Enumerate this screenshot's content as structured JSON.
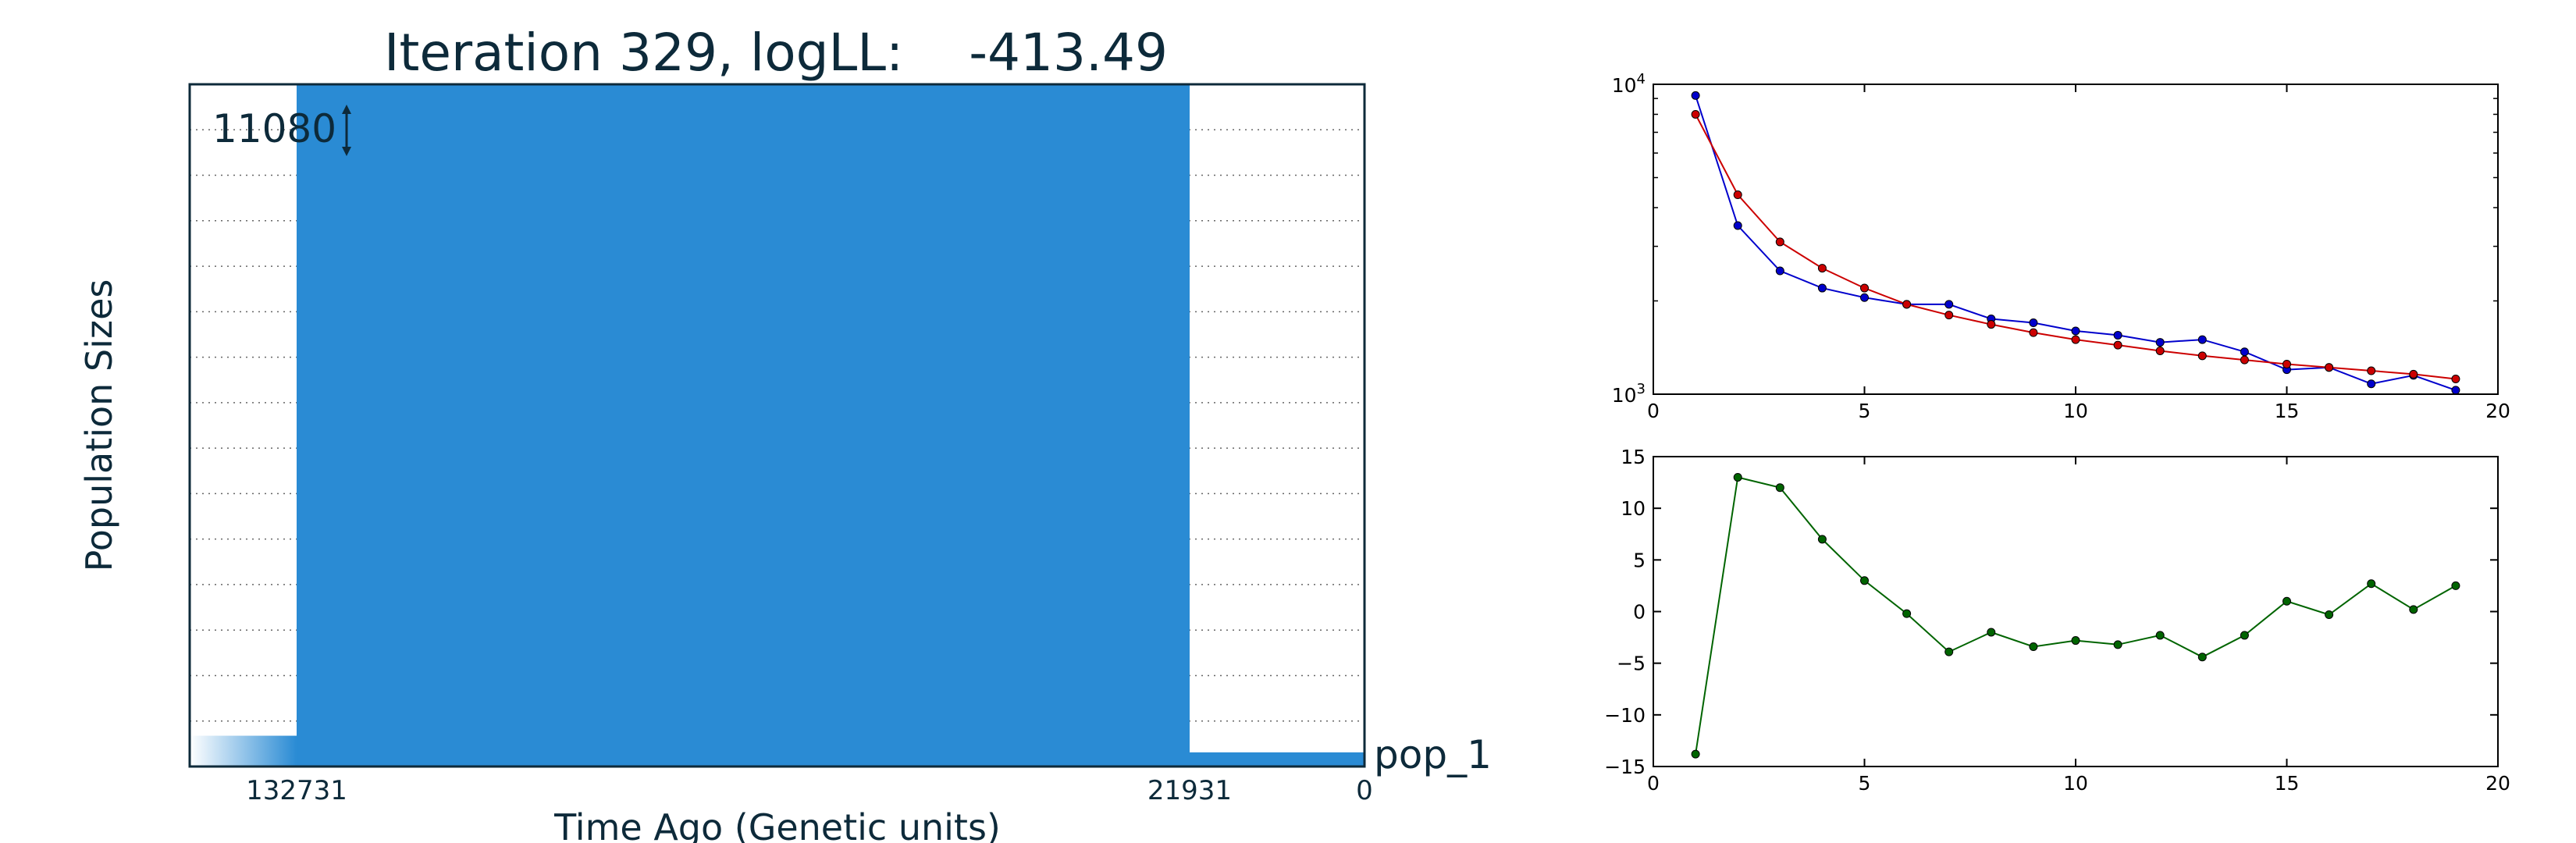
{
  "chart_data": [
    {
      "type": "area",
      "title": "Iteration 329, logLL:    -413.49",
      "xlabel": "Time Ago (Genetic units)",
      "ylabel": "Population Sizes",
      "size_scale_label": "11080",
      "population_label": "pop_1",
      "x_tick_labels": [
        "132731",
        "21931",
        "0"
      ],
      "epochs": [
        {
          "start": 132731,
          "end": null,
          "size": 500,
          "style": "ancestral-gradient"
        },
        {
          "start": 21931,
          "end": 132731,
          "size": 11080,
          "style": "solid"
        },
        {
          "start": 0,
          "end": 21931,
          "size": 230,
          "style": "solid"
        }
      ],
      "ylim": [
        0,
        11080
      ],
      "grid": "dotted horizontal",
      "colors": {
        "fill": "#2a8bd4",
        "text": "#0d2a3a",
        "frame": "#0d2a3a"
      }
    },
    {
      "type": "line",
      "xlim": [
        0,
        20
      ],
      "ylim": [
        1000,
        10000
      ],
      "yscale": "log",
      "x_ticks": [
        0,
        5,
        10,
        15,
        20
      ],
      "y_ticks": [
        {
          "value": 1000,
          "base": "10",
          "exp": "3"
        },
        {
          "value": 10000,
          "base": "10",
          "exp": "4"
        }
      ],
      "x": [
        1,
        2,
        3,
        4,
        5,
        6,
        7,
        8,
        9,
        10,
        11,
        12,
        13,
        14,
        15,
        16,
        17,
        18,
        19
      ],
      "series": [
        {
          "color": "#0000cc",
          "values": [
            9200,
            3500,
            2500,
            2200,
            2050,
            1950,
            1950,
            1750,
            1700,
            1600,
            1550,
            1470,
            1500,
            1370,
            1200,
            1220,
            1080,
            1150,
            1030
          ]
        },
        {
          "color": "#cc0000",
          "values": [
            8000,
            4400,
            3100,
            2550,
            2200,
            1950,
            1800,
            1680,
            1580,
            1500,
            1440,
            1380,
            1330,
            1290,
            1250,
            1220,
            1190,
            1160,
            1120
          ]
        }
      ]
    },
    {
      "type": "line",
      "xlim": [
        0,
        20
      ],
      "ylim": [
        -15,
        15
      ],
      "x_ticks": [
        0,
        5,
        10,
        15,
        20
      ],
      "y_ticks": [
        -15,
        -10,
        -5,
        0,
        5,
        10,
        15
      ],
      "x": [
        1,
        2,
        3,
        4,
        5,
        6,
        7,
        8,
        9,
        10,
        11,
        12,
        13,
        14,
        15,
        16,
        17,
        18,
        19
      ],
      "series": [
        {
          "color": "#006400",
          "values": [
            -13.8,
            13.0,
            12.0,
            7.0,
            3.0,
            -0.2,
            -3.9,
            -2.0,
            -3.4,
            -2.8,
            -3.2,
            -2.3,
            -4.4,
            -2.3,
            1.0,
            -0.3,
            2.7,
            0.2,
            2.5
          ]
        }
      ]
    }
  ]
}
